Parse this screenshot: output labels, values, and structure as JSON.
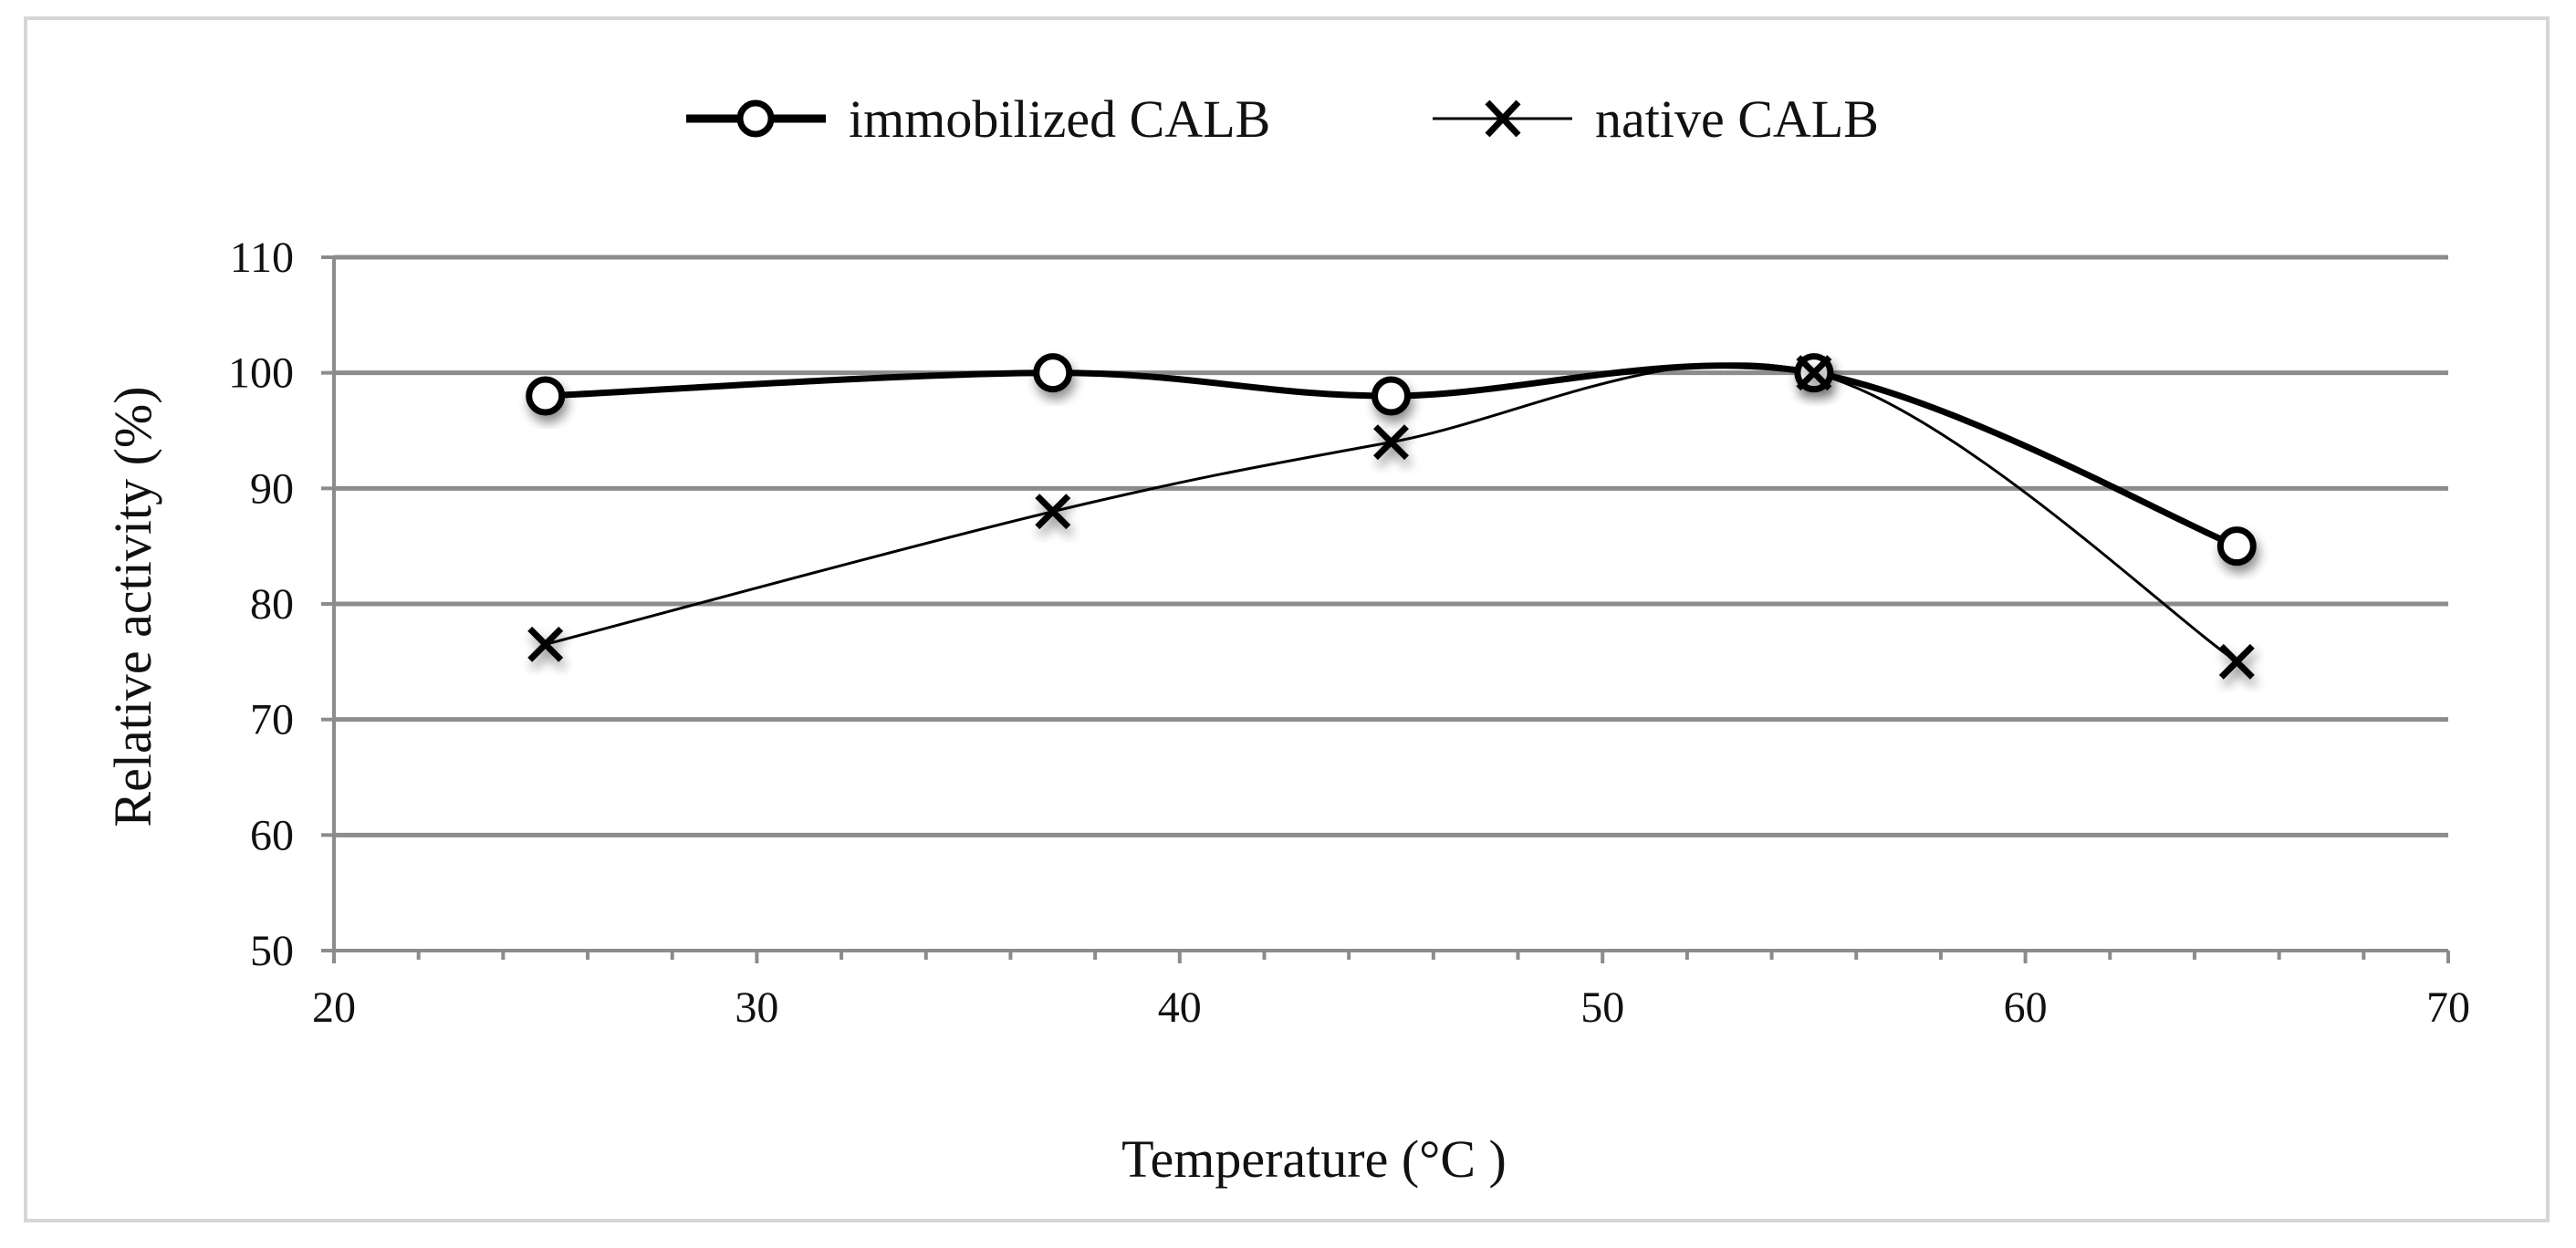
{
  "chart_data": {
    "type": "line",
    "title": "",
    "xlabel": "Temperature (°C )",
    "ylabel": "Relative activity (%)",
    "xlim": [
      20,
      70
    ],
    "ylim": [
      50,
      110
    ],
    "xticks": [
      20,
      30,
      40,
      50,
      60,
      70
    ],
    "yticks": [
      50,
      60,
      70,
      80,
      90,
      100,
      110
    ],
    "grid": true,
    "legend_position": "top",
    "series": [
      {
        "name": "immobilized CALB",
        "marker": "circle",
        "style": "thick",
        "x": [
          25,
          37,
          45,
          55,
          65
        ],
        "y": [
          98,
          100,
          98,
          100,
          85
        ]
      },
      {
        "name": "native CALB",
        "marker": "cross",
        "style": "thin",
        "x": [
          25,
          37,
          45,
          55,
          65
        ],
        "y": [
          76.5,
          88,
          94,
          100,
          75
        ]
      }
    ]
  }
}
